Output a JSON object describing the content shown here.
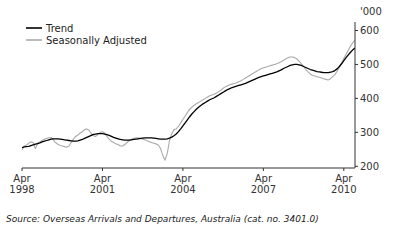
{
  "chart_data": {
    "type": "line",
    "ylabel": "'000",
    "annotations": [
      "Source: Overseas Arrivals and Departures, Australia (cat. no. 3401.0)"
    ],
    "background_color": "#ffffff",
    "legend": "upper left",
    "grid": false,
    "ylim": [
      195,
      625
    ],
    "yticks": [
      200,
      300,
      400,
      500,
      600
    ],
    "categories": [
      "Apr\n1998",
      null,
      null,
      null,
      null,
      null,
      null,
      null,
      null,
      null,
      null,
      null,
      null,
      null,
      null,
      null,
      null,
      null,
      null,
      null,
      null,
      null,
      null,
      null,
      null,
      null,
      null,
      null,
      null,
      null,
      null,
      null,
      null,
      null,
      null,
      null,
      "Apr\n2001",
      null,
      null,
      null,
      null,
      null,
      null,
      null,
      null,
      null,
      null,
      null,
      null,
      null,
      null,
      null,
      null,
      null,
      null,
      null,
      null,
      null,
      null,
      null,
      null,
      null,
      null,
      null,
      null,
      null,
      null,
      null,
      null,
      null,
      null,
      null,
      "Apr\n2004",
      null,
      null,
      null,
      null,
      null,
      null,
      null,
      null,
      null,
      null,
      null,
      null,
      null,
      null,
      null,
      null,
      null,
      null,
      null,
      null,
      null,
      null,
      null,
      null,
      null,
      null,
      null,
      null,
      null,
      null,
      null,
      null,
      null,
      null,
      null,
      "Apr\n2007",
      null,
      null,
      null,
      null,
      null,
      null,
      null,
      null,
      null,
      null,
      null,
      null,
      null,
      null,
      null,
      null,
      null,
      null,
      null,
      null,
      null,
      null,
      null,
      null,
      null,
      null,
      null,
      null,
      null,
      null,
      null,
      null,
      null,
      null,
      null,
      "Apr\n2010",
      null,
      null,
      null,
      null,
      null
    ],
    "series": [
      {
        "name": "Trend",
        "color": "#000000",
        "values": [
          255,
          257,
          258,
          259,
          261,
          263,
          265,
          267,
          269,
          272,
          274,
          276,
          278,
          280,
          281,
          281,
          281,
          280,
          279,
          278,
          277,
          276,
          275,
          274,
          274,
          275,
          277,
          279,
          282,
          285,
          288,
          291,
          294,
          295,
          296,
          296,
          296,
          295,
          293,
          291,
          288,
          285,
          283,
          281,
          279,
          278,
          277,
          277,
          277,
          278,
          279,
          280,
          281,
          282,
          283,
          284,
          284,
          284,
          284,
          283,
          282,
          281,
          280,
          280,
          280,
          281,
          283,
          286,
          290,
          295,
          302,
          310,
          319,
          328,
          337,
          346,
          354,
          361,
          368,
          374,
          379,
          384,
          388,
          392,
          396,
          399,
          402,
          406,
          410,
          414,
          418,
          422,
          426,
          429,
          432,
          434,
          436,
          438,
          440,
          442,
          444,
          447,
          450,
          453,
          456,
          459,
          462,
          464,
          466,
          468,
          470,
          472,
          474,
          476,
          478,
          481,
          484,
          488,
          491,
          494,
          497,
          499,
          500,
          500,
          499,
          497,
          494,
          491,
          488,
          485,
          483,
          481,
          479,
          478,
          477,
          476,
          476,
          476,
          477,
          479,
          482,
          487,
          494,
          502,
          511,
          520,
          528,
          536,
          543,
          548
        ]
      },
      {
        "name": "Seasonally Adjusted",
        "color": "#aaaaaa",
        "values": [
          248,
          260,
          262,
          268,
          272,
          270,
          252,
          268,
          272,
          276,
          280,
          282,
          284,
          285,
          278,
          270,
          265,
          262,
          260,
          258,
          256,
          260,
          270,
          280,
          288,
          292,
          298,
          302,
          308,
          310,
          306,
          296,
          290,
          288,
          294,
          300,
          302,
          298,
          288,
          280,
          274,
          270,
          266,
          264,
          260,
          260,
          264,
          270,
          276,
          280,
          282,
          284,
          284,
          282,
          280,
          278,
          275,
          272,
          270,
          268,
          266,
          263,
          252,
          232,
          218,
          238,
          276,
          296,
          308,
          310,
          318,
          328,
          338,
          348,
          358,
          368,
          374,
          380,
          384,
          388,
          392,
          396,
          400,
          404,
          408,
          410,
          412,
          416,
          420,
          424,
          430,
          434,
          437,
          440,
          442,
          444,
          446,
          449,
          452,
          456,
          460,
          464,
          468,
          472,
          476,
          480,
          484,
          487,
          490,
          492,
          494,
          496,
          498,
          500,
          502,
          505,
          508,
          512,
          516,
          520,
          522,
          522,
          520,
          516,
          510,
          502,
          494,
          485,
          478,
          472,
          468,
          466,
          464,
          462,
          460,
          458,
          456,
          454,
          458,
          464,
          470,
          480,
          492,
          504,
          518,
          530,
          542,
          554,
          564,
          572
        ]
      }
    ]
  }
}
